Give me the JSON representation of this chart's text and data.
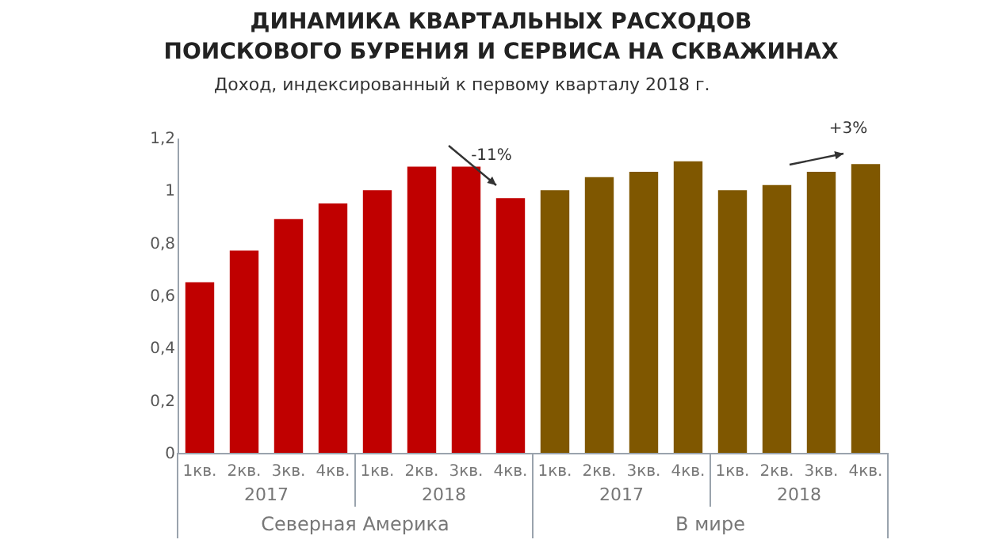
{
  "chart_data": {
    "type": "bar",
    "title": "ДИНАМИКА КВАРТАЛЬНЫХ РАСХОДОВ\nПОИСКОВОГО БУРЕНИЯ И СЕРВИСА НА СКВАЖИНАХ",
    "subtitle": "Доход, индексированный к первому кварталу 2018 г.",
    "categories": [
      "1кв.",
      "2кв.",
      "3кв.",
      "4кв.",
      "1кв.",
      "2кв.",
      "3кв.",
      "4кв.",
      "1кв.",
      "2кв.",
      "3кв.",
      "4кв.",
      "1кв.",
      "2кв.",
      "3кв.",
      "4кв."
    ],
    "series": [
      {
        "name": "Северная Америка",
        "color": "#c00000",
        "values": [
          0.65,
          0.77,
          0.89,
          0.95,
          1.0,
          1.09,
          1.09,
          0.97,
          null,
          null,
          null,
          null,
          null,
          null,
          null,
          null
        ]
      },
      {
        "name": "В мире",
        "color": "#7f5700",
        "values": [
          null,
          null,
          null,
          null,
          null,
          null,
          null,
          null,
          1.0,
          1.05,
          1.07,
          1.11,
          1.0,
          1.02,
          1.07,
          1.1
        ]
      }
    ],
    "annotations": [
      "2017",
      "2018",
      "2017",
      "2018",
      "-11%",
      "+3%"
    ],
    "ylim": [
      0,
      1.2
    ],
    "yticks": [
      0,
      {
        "value": 0.2,
        "label": "0,2"
      },
      {
        "value": 0.4,
        "label": "0,4"
      },
      {
        "value": 0.6,
        "label": "0,6"
      },
      {
        "value": 0.8,
        "label": "0,8"
      },
      1,
      {
        "value": 1.2,
        "label": "1,2"
      }
    ],
    "legend": false
  }
}
